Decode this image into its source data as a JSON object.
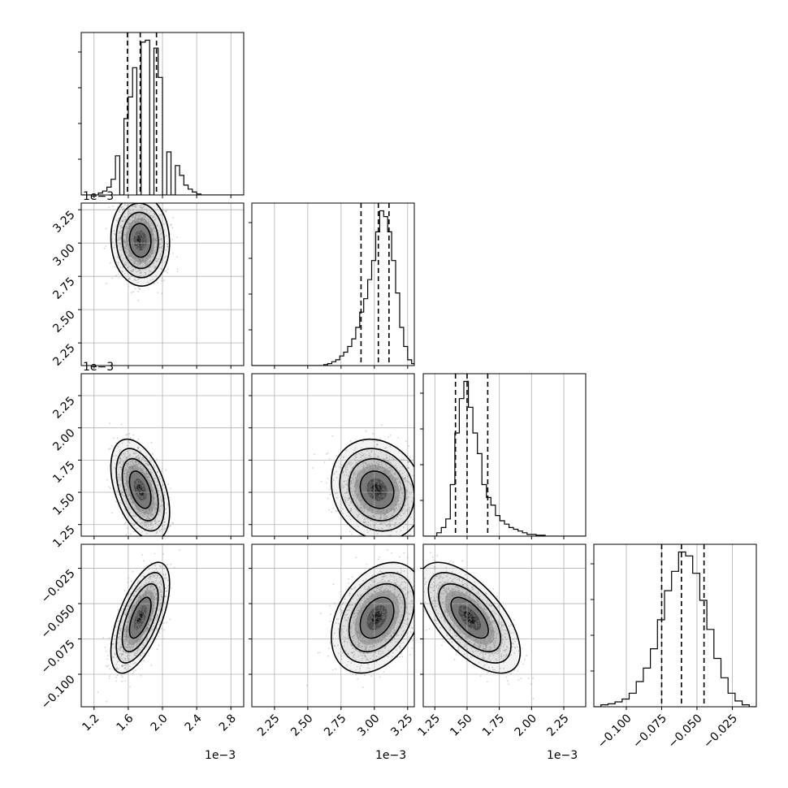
{
  "chart_data": {
    "type": "scatter",
    "title": "",
    "parameters": [
      {
        "range": [
          1.05,
          2.95
        ],
        "ticks": [
          1.2,
          1.6,
          2.0,
          2.4,
          2.8
        ],
        "tick_labels": [
          "1.2",
          "1.6",
          "2.0",
          "2.4",
          "2.8"
        ],
        "multiplier": "1e−3"
      },
      {
        "range": [
          2.08,
          3.3
        ],
        "ticks": [
          2.25,
          2.5,
          2.75,
          3.0,
          3.25
        ],
        "tick_labels": [
          "2.25",
          "2.50",
          "2.75",
          "3.00",
          "3.25"
        ],
        "multiplier": "1e−3"
      },
      {
        "range": [
          1.16,
          2.42
        ],
        "ticks": [
          1.25,
          1.5,
          1.75,
          2.0,
          2.25
        ],
        "tick_labels": [
          "1.25",
          "1.50",
          "1.75",
          "2.00",
          "2.25"
        ],
        "multiplier": "1e−3"
      },
      {
        "range": [
          -0.123,
          -0.008
        ],
        "ticks": [
          -0.1,
          -0.075,
          -0.05,
          -0.025
        ],
        "tick_labels": [
          "−0.100",
          "−0.075",
          "−0.050",
          "−0.025"
        ],
        "multiplier": ""
      }
    ],
    "quantiles": [
      [
        1.59,
        1.74,
        1.93
      ],
      [
        2.9,
        3.03,
        3.11
      ],
      [
        1.41,
        1.5,
        1.66
      ],
      [
        -0.075,
        -0.061,
        -0.045
      ]
    ],
    "histograms": [
      {
        "bin_edges": [
          1.05,
          1.1,
          1.15,
          1.2,
          1.25,
          1.3,
          1.35,
          1.4,
          1.45,
          1.5,
          1.55,
          1.6,
          1.65,
          1.7,
          1.75,
          1.8,
          1.85,
          1.9,
          1.95,
          2.0,
          2.05,
          2.1,
          2.15,
          2.2,
          2.25,
          2.3,
          2.35,
          2.4,
          2.45,
          2.5,
          2.55,
          2.6,
          2.65,
          2.7,
          2.75,
          2.8,
          2.85,
          2.9,
          2.95
        ],
        "counts": [
          0,
          0,
          0,
          0,
          2,
          4,
          8,
          16,
          40,
          0,
          78,
          100,
          130,
          0,
          156,
          158,
          0,
          150,
          120,
          0,
          44,
          0,
          30,
          20,
          10,
          6,
          3,
          1,
          0,
          0,
          0,
          0,
          0,
          0,
          0,
          0,
          0,
          0
        ]
      },
      {
        "bin_edges": [
          2.08,
          2.11,
          2.14,
          2.17,
          2.2,
          2.23,
          2.26,
          2.29,
          2.32,
          2.35,
          2.38,
          2.41,
          2.44,
          2.47,
          2.5,
          2.53,
          2.56,
          2.59,
          2.62,
          2.65,
          2.68,
          2.71,
          2.74,
          2.77,
          2.8,
          2.83,
          2.86,
          2.89,
          2.92,
          2.95,
          2.98,
          3.01,
          3.04,
          3.07,
          3.1,
          3.13,
          3.16,
          3.19,
          3.22,
          3.25,
          3.28,
          3.3
        ],
        "counts": [
          0,
          0,
          0,
          0,
          0,
          0,
          0,
          0,
          0,
          0,
          0,
          0,
          0,
          0,
          0,
          0,
          0,
          0,
          1,
          2,
          4,
          6,
          10,
          14,
          20,
          28,
          40,
          56,
          70,
          90,
          110,
          140,
          162,
          156,
          140,
          110,
          76,
          40,
          20,
          6,
          2
        ]
      },
      {
        "bin_edges": [
          1.16,
          1.195,
          1.23,
          1.265,
          1.3,
          1.335,
          1.37,
          1.405,
          1.44,
          1.475,
          1.51,
          1.545,
          1.58,
          1.615,
          1.65,
          1.685,
          1.72,
          1.755,
          1.79,
          1.825,
          1.86,
          1.895,
          1.93,
          1.965,
          2.0,
          2.035,
          2.07,
          2.105,
          2.14,
          2.175,
          2.21,
          2.245,
          2.28,
          2.315,
          2.35,
          2.385,
          2.42
        ],
        "counts": [
          0,
          0,
          0,
          4,
          10,
          20,
          60,
          120,
          160,
          180,
          150,
          120,
          96,
          60,
          45,
          36,
          24,
          18,
          14,
          10,
          8,
          6,
          4,
          2,
          2,
          1,
          1,
          0,
          0,
          0,
          0,
          0,
          0,
          0,
          0,
          0
        ]
      },
      {
        "bin_edges": [
          -0.123,
          -0.118,
          -0.113,
          -0.108,
          -0.103,
          -0.098,
          -0.093,
          -0.088,
          -0.083,
          -0.078,
          -0.073,
          -0.068,
          -0.063,
          -0.058,
          -0.053,
          -0.048,
          -0.043,
          -0.038,
          -0.033,
          -0.028,
          -0.023,
          -0.018,
          -0.013,
          -0.008
        ],
        "counts": [
          0,
          2,
          3,
          5,
          8,
          14,
          26,
          40,
          60,
          90,
          120,
          140,
          160,
          156,
          138,
          110,
          80,
          50,
          30,
          14,
          6,
          2,
          0
        ]
      }
    ],
    "scatter_stats": {
      "means": [
        1.74,
        3.02,
        1.52,
        -0.06
      ],
      "stds": [
        0.14,
        0.14,
        0.16,
        0.016
      ],
      "correlations": {
        "1-0": -0.05,
        "2-0": -0.45,
        "2-1": -0.15,
        "3-0": 0.62,
        "3-1": 0.35,
        "3-2": -0.62
      }
    },
    "grid": true,
    "xlabel": "",
    "ylabel": ""
  },
  "colors": {
    "axes": "#000000",
    "grid": "#b0b0b0",
    "points": "#7f7f7f",
    "density": "#000000",
    "quantile_lines": "#000000"
  }
}
